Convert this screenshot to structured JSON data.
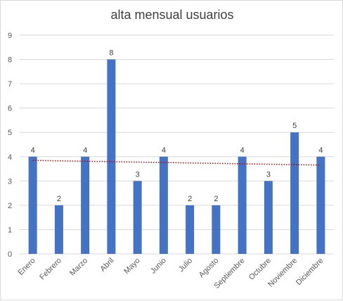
{
  "chart_data": {
    "type": "bar",
    "title": "alta mensual usuarios",
    "categories": [
      "Enero",
      "Febrero",
      "Marzo",
      "Abril",
      "Mayo",
      "Junio",
      "Julio",
      "Agosto",
      "Septiembre",
      "Octubre",
      "Noviembre",
      "Diciembre"
    ],
    "values": [
      4,
      2,
      4,
      8,
      3,
      4,
      2,
      2,
      4,
      3,
      5,
      4
    ],
    "ylim": [
      0,
      9
    ],
    "yticks": [
      0,
      1,
      2,
      3,
      4,
      5,
      6,
      7,
      8,
      9
    ],
    "grid": true,
    "data_labels": true,
    "trendline": {
      "type": "linear",
      "style": "dotted"
    },
    "colors": {
      "bar": "#4472c4",
      "trendline": "#c00000",
      "grid": "#d9d9d9"
    }
  }
}
